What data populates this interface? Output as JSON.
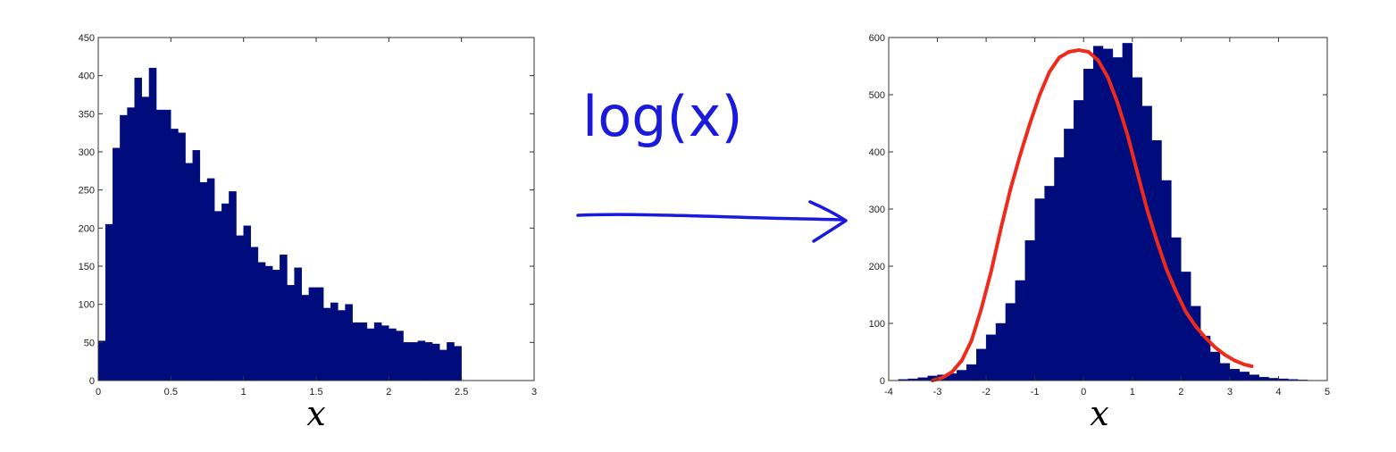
{
  "colors": {
    "bar": "#000b7c",
    "curve": "#ee2a1c",
    "ink": "#1a1adc",
    "axis": "#333333"
  },
  "annotation": {
    "text": "log(x)"
  },
  "chart_data": [
    {
      "type": "bar",
      "title": "",
      "xlabel": "x",
      "ylabel": "",
      "xlim": [
        0,
        3
      ],
      "ylim": [
        0,
        450
      ],
      "xticks": [
        "0",
        "0.5",
        "1",
        "1.5",
        "2",
        "2.5",
        "3"
      ],
      "yticks": [
        "0",
        "50",
        "100",
        "150",
        "200",
        "250",
        "300",
        "350",
        "400",
        "450"
      ],
      "bin_start": 0,
      "bin_width": 0.05,
      "values": [
        52,
        205,
        305,
        348,
        358,
        397,
        372,
        410,
        355,
        355,
        330,
        325,
        285,
        302,
        260,
        265,
        222,
        232,
        248,
        190,
        203,
        175,
        155,
        150,
        145,
        165,
        125,
        148,
        112,
        122,
        122,
        95,
        102,
        92,
        100,
        76,
        76,
        68,
        76,
        72,
        68,
        65,
        50,
        50,
        52,
        50,
        48,
        40,
        50,
        45
      ]
    },
    {
      "type": "bar",
      "title": "",
      "xlabel": "x",
      "ylabel": "",
      "xlim": [
        -4,
        5
      ],
      "ylim": [
        0,
        600
      ],
      "xticks": [
        "-4",
        "-3",
        "-2",
        "-1",
        "0",
        "1",
        "2",
        "3",
        "4",
        "5"
      ],
      "yticks": [
        "0",
        "100",
        "200",
        "300",
        "400",
        "500",
        "600"
      ],
      "bin_start": -3.8,
      "bin_width": 0.2,
      "values": [
        2,
        3,
        5,
        8,
        10,
        12,
        18,
        28,
        55,
        80,
        100,
        135,
        175,
        245,
        318,
        340,
        390,
        440,
        490,
        545,
        585,
        580,
        565,
        590,
        530,
        480,
        420,
        350,
        250,
        190,
        130,
        78,
        50,
        30,
        20,
        15,
        10,
        6,
        4,
        3,
        2,
        1
      ],
      "overlay": {
        "type": "line",
        "name": "",
        "x": [
          -3.1,
          -2.9,
          -2.7,
          -2.5,
          -2.3,
          -2.1,
          -1.9,
          -1.7,
          -1.5,
          -1.3,
          -1.1,
          -0.9,
          -0.7,
          -0.5,
          -0.3,
          -0.1,
          0.1,
          0.3,
          0.5,
          0.7,
          0.9,
          1.1,
          1.3,
          1.5,
          1.7,
          1.9,
          2.1,
          2.3,
          2.5,
          2.7,
          2.9,
          3.1,
          3.3,
          3.45
        ],
        "y": [
          0,
          5,
          15,
          35,
          70,
          125,
          190,
          265,
          335,
          395,
          450,
          500,
          540,
          565,
          575,
          578,
          575,
          560,
          530,
          485,
          430,
          365,
          300,
          245,
          195,
          155,
          120,
          95,
          75,
          58,
          45,
          35,
          28,
          25
        ]
      }
    }
  ]
}
